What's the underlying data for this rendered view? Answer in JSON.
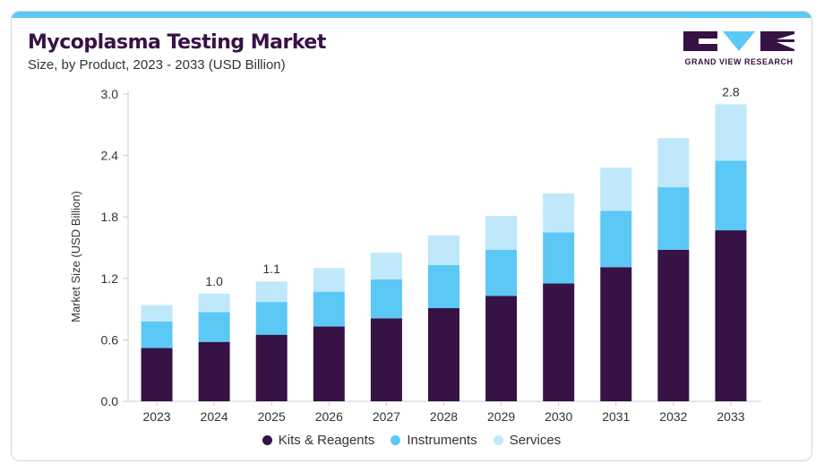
{
  "header": {
    "title": "Mycoplasma Testing Market",
    "subtitle": "Size, by Product, 2023 - 2033 (USD Billion)"
  },
  "brand": {
    "name": "GRAND VIEW RESEARCH",
    "primary_color": "#371245",
    "accent_color": "#5bc8f5"
  },
  "chart_data": {
    "type": "bar",
    "stacked": true,
    "categories": [
      "2023",
      "2024",
      "2025",
      "2026",
      "2027",
      "2028",
      "2029",
      "2030",
      "2031",
      "2032",
      "2033"
    ],
    "series": [
      {
        "name": "Kits & Reagents",
        "color": "#371245",
        "values": [
          0.52,
          0.58,
          0.65,
          0.73,
          0.81,
          0.91,
          1.03,
          1.15,
          1.31,
          1.48,
          1.67
        ]
      },
      {
        "name": "Instruments",
        "color": "#5bc8f5",
        "values": [
          0.26,
          0.29,
          0.32,
          0.34,
          0.38,
          0.42,
          0.45,
          0.5,
          0.55,
          0.61,
          0.68
        ]
      },
      {
        "name": "Services",
        "color": "#bfe8fa",
        "values": [
          0.16,
          0.18,
          0.2,
          0.23,
          0.26,
          0.29,
          0.33,
          0.38,
          0.42,
          0.48,
          0.55
        ]
      }
    ],
    "data_labels": [
      {
        "category": "2024",
        "text": "1.0"
      },
      {
        "category": "2025",
        "text": "1.1"
      },
      {
        "category": "2033",
        "text": "2.8"
      }
    ],
    "ylabel": "Market Size (USD Billion)",
    "xlabel": "",
    "ylim": [
      0,
      3.0
    ],
    "yticks": [
      "0.0",
      "0.6",
      "1.2",
      "1.8",
      "2.4",
      "3.0"
    ],
    "grid": false,
    "legend_position": "bottom"
  }
}
